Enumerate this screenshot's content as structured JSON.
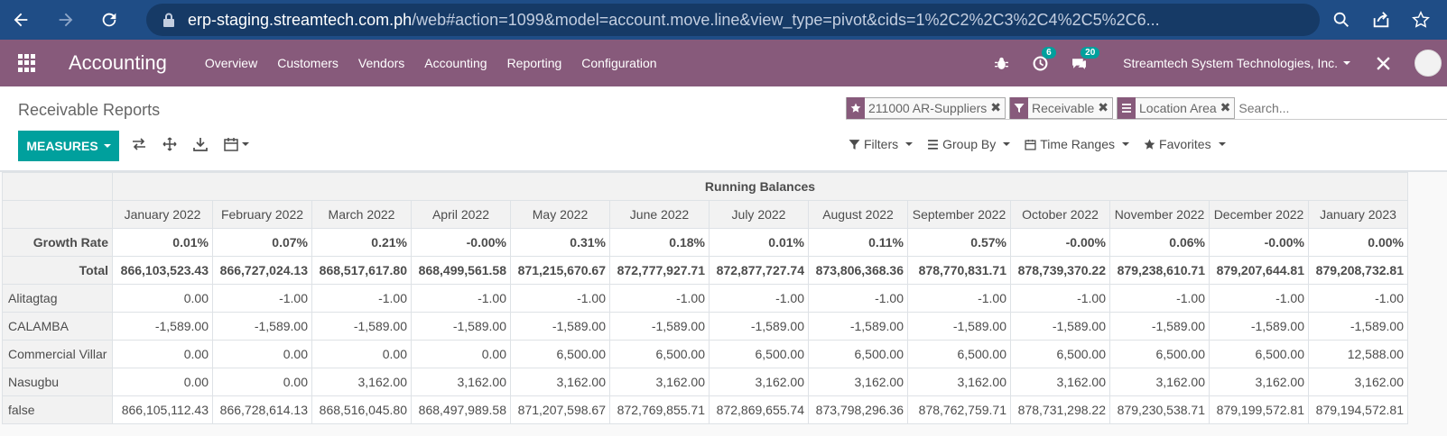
{
  "browser": {
    "url_host": "erp-staging.streamtech.com.ph",
    "url_path": "/web#action=1099&model=account.move.line&view_type=pivot&cids=1%2C2%2C3%2C4%2C5%2C6..."
  },
  "navbar": {
    "app_name": "Accounting",
    "menus": [
      "Overview",
      "Customers",
      "Vendors",
      "Accounting",
      "Reporting",
      "Configuration"
    ],
    "activity_count": "6",
    "message_count": "20",
    "company": "Streamtech System Technologies, Inc."
  },
  "control_panel": {
    "breadcrumb": "Receivable Reports",
    "facets": [
      "211000 AR-Suppliers",
      "Receivable",
      "Location Area"
    ],
    "search_placeholder": "Search...",
    "measures_label": "MEASURES",
    "filters_label": "Filters",
    "group_by_label": "Group By",
    "time_ranges_label": "Time Ranges",
    "favorites_label": "Favorites"
  },
  "pivot": {
    "group_header": "Running Balances",
    "columns": [
      "January 2022",
      "February 2022",
      "March 2022",
      "April 2022",
      "May 2022",
      "June 2022",
      "July 2022",
      "August 2022",
      "September 2022",
      "October 2022",
      "November 2022",
      "December 2022",
      "January 2023"
    ],
    "rows": [
      {
        "label": "Growth Rate",
        "bold": true,
        "values": [
          "0.01%",
          "0.07%",
          "0.21%",
          "-0.00%",
          "0.31%",
          "0.18%",
          "0.01%",
          "0.11%",
          "0.57%",
          "-0.00%",
          "0.06%",
          "-0.00%",
          "0.00%"
        ]
      },
      {
        "label": "Total",
        "bold": true,
        "values": [
          "866,103,523.43",
          "866,727,024.13",
          "868,517,617.80",
          "868,499,561.58",
          "871,215,670.67",
          "872,777,927.71",
          "872,877,727.74",
          "873,806,368.36",
          "878,770,831.71",
          "878,739,370.22",
          "879,238,610.71",
          "879,207,644.81",
          "879,208,732.81"
        ]
      },
      {
        "label": "Alitagtag",
        "bold": false,
        "values": [
          "0.00",
          "-1.00",
          "-1.00",
          "-1.00",
          "-1.00",
          "-1.00",
          "-1.00",
          "-1.00",
          "-1.00",
          "-1.00",
          "-1.00",
          "-1.00",
          "-1.00"
        ]
      },
      {
        "label": "CALAMBA",
        "bold": false,
        "values": [
          "-1,589.00",
          "-1,589.00",
          "-1,589.00",
          "-1,589.00",
          "-1,589.00",
          "-1,589.00",
          "-1,589.00",
          "-1,589.00",
          "-1,589.00",
          "-1,589.00",
          "-1,589.00",
          "-1,589.00",
          "-1,589.00"
        ]
      },
      {
        "label": "Commercial Villar",
        "bold": false,
        "values": [
          "0.00",
          "0.00",
          "0.00",
          "0.00",
          "6,500.00",
          "6,500.00",
          "6,500.00",
          "6,500.00",
          "6,500.00",
          "6,500.00",
          "6,500.00",
          "6,500.00",
          "12,588.00"
        ]
      },
      {
        "label": "Nasugbu",
        "bold": false,
        "values": [
          "0.00",
          "0.00",
          "3,162.00",
          "3,162.00",
          "3,162.00",
          "3,162.00",
          "3,162.00",
          "3,162.00",
          "3,162.00",
          "3,162.00",
          "3,162.00",
          "3,162.00",
          "3,162.00"
        ]
      },
      {
        "label": "false",
        "bold": false,
        "values": [
          "866,105,112.43",
          "866,728,614.13",
          "868,516,045.80",
          "868,497,989.58",
          "871,207,598.67",
          "872,769,855.71",
          "872,869,655.74",
          "873,798,296.36",
          "878,762,759.71",
          "878,731,298.22",
          "879,230,538.71",
          "879,199,572.81",
          "879,194,572.81"
        ]
      }
    ]
  },
  "colors": {
    "browser_bar": "#1f4d86",
    "navbar": "#875a7b",
    "accent": "#00a09d"
  }
}
